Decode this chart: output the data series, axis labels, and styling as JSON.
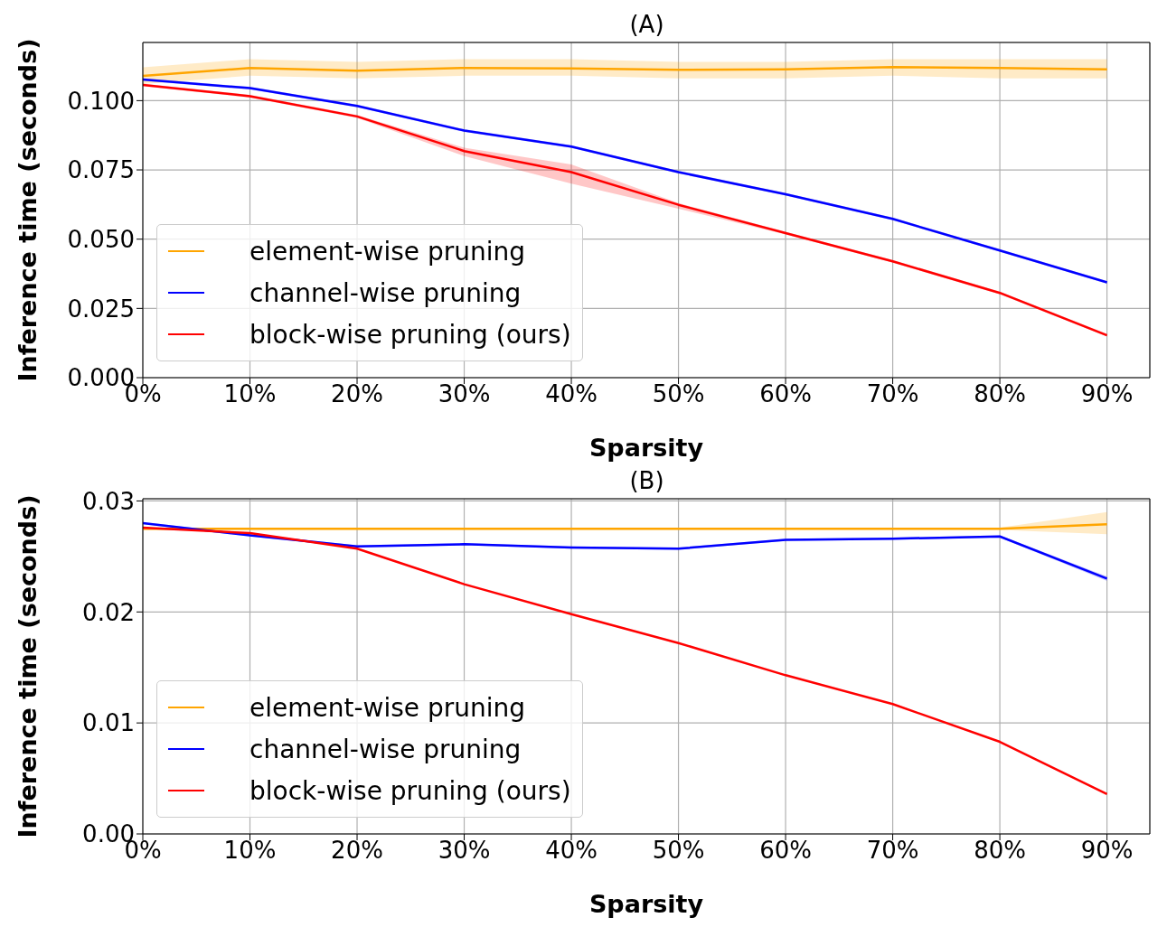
{
  "chart_data": [
    {
      "type": "line",
      "title": "(A)",
      "xlabel": "Sparsity",
      "ylabel": "Inference time (seconds)",
      "x": [
        0,
        10,
        20,
        30,
        40,
        50,
        60,
        70,
        80,
        90
      ],
      "xlim": [
        0,
        94
      ],
      "xticks": [
        {
          "value": 0,
          "label": "0%"
        },
        {
          "value": 10,
          "label": "10%"
        },
        {
          "value": 20,
          "label": "20%"
        },
        {
          "value": 30,
          "label": "30%"
        },
        {
          "value": 40,
          "label": "40%"
        },
        {
          "value": 50,
          "label": "50%"
        },
        {
          "value": 60,
          "label": "60%"
        },
        {
          "value": 70,
          "label": "70%"
        },
        {
          "value": 80,
          "label": "80%"
        },
        {
          "value": 90,
          "label": "90%"
        }
      ],
      "ylim": [
        0,
        0.121
      ],
      "yticks": [
        {
          "value": 0,
          "label": "0.000"
        },
        {
          "value": 0.025,
          "label": "0.025"
        },
        {
          "value": 0.05,
          "label": "0.050"
        },
        {
          "value": 0.075,
          "label": "0.075"
        },
        {
          "value": 0.1,
          "label": "0.100"
        }
      ],
      "grid": true,
      "legend": "bottom left",
      "series": [
        {
          "name": "element-wise pruning",
          "color": "#ffa500",
          "values": [
            0.1089,
            0.1118,
            0.1108,
            0.1118,
            0.1116,
            0.1111,
            0.1113,
            0.1121,
            0.1118,
            0.1113
          ],
          "lower": [
            0.106,
            0.109,
            0.108,
            0.109,
            0.109,
            0.108,
            0.108,
            0.109,
            0.108,
            0.108
          ],
          "upper": [
            0.112,
            0.115,
            0.114,
            0.115,
            0.115,
            0.114,
            0.114,
            0.115,
            0.115,
            0.115
          ]
        },
        {
          "name": "channel-wise pruning",
          "color": "#0000ff",
          "values": [
            0.1076,
            0.1045,
            0.0981,
            0.0892,
            0.0834,
            0.0742,
            0.0662,
            0.0573,
            0.0459,
            0.0344
          ],
          "lower": [
            0.1071,
            0.104,
            0.0976,
            0.0887,
            0.0829,
            0.0737,
            0.0657,
            0.0568,
            0.0454,
            0.0339
          ],
          "upper": [
            0.1081,
            0.105,
            0.0986,
            0.0897,
            0.0839,
            0.0747,
            0.0667,
            0.0578,
            0.0464,
            0.0349
          ]
        },
        {
          "name": "block-wise pruning (ours)",
          "color": "#ff0000",
          "values": [
            0.1057,
            0.1016,
            0.0943,
            0.0818,
            0.0742,
            0.0624,
            0.0522,
            0.042,
            0.0306,
            0.0153
          ],
          "lower": [
            0.1052,
            0.1011,
            0.0938,
            0.08,
            0.07,
            0.061,
            0.0517,
            0.0415,
            0.0301,
            0.0148
          ],
          "upper": [
            0.1062,
            0.1021,
            0.0948,
            0.083,
            0.077,
            0.063,
            0.0527,
            0.0425,
            0.0311,
            0.0158
          ]
        }
      ]
    },
    {
      "type": "line",
      "title": "(B)",
      "xlabel": "Sparsity",
      "ylabel": "Inference time (seconds)",
      "x": [
        0,
        10,
        20,
        30,
        40,
        50,
        60,
        70,
        80,
        90
      ],
      "xlim": [
        0,
        94
      ],
      "xticks": [
        {
          "value": 0,
          "label": "0%"
        },
        {
          "value": 10,
          "label": "10%"
        },
        {
          "value": 20,
          "label": "20%"
        },
        {
          "value": 30,
          "label": "30%"
        },
        {
          "value": 40,
          "label": "40%"
        },
        {
          "value": 50,
          "label": "50%"
        },
        {
          "value": 60,
          "label": "60%"
        },
        {
          "value": 70,
          "label": "70%"
        },
        {
          "value": 80,
          "label": "80%"
        },
        {
          "value": 90,
          "label": "90%"
        }
      ],
      "ylim": [
        0,
        0.0302
      ],
      "yticks": [
        {
          "value": 0,
          "label": "0.00"
        },
        {
          "value": 0.01,
          "label": "0.01"
        },
        {
          "value": 0.02,
          "label": "0.02"
        },
        {
          "value": 0.03,
          "label": "0.03"
        }
      ],
      "grid": true,
      "legend": "bottom left",
      "series": [
        {
          "name": "element-wise pruning",
          "color": "#ffa500",
          "values": [
            0.0275,
            0.0275,
            0.0275,
            0.0275,
            0.0275,
            0.0275,
            0.0275,
            0.0275,
            0.0275,
            0.0279
          ],
          "lower": [
            0.0274,
            0.0274,
            0.0274,
            0.0274,
            0.0274,
            0.0274,
            0.0274,
            0.0274,
            0.0274,
            0.027
          ],
          "upper": [
            0.0276,
            0.0276,
            0.0276,
            0.0276,
            0.0276,
            0.0276,
            0.0276,
            0.0276,
            0.0276,
            0.029
          ]
        },
        {
          "name": "channel-wise pruning",
          "color": "#0000ff",
          "values": [
            0.028,
            0.0269,
            0.0259,
            0.0261,
            0.0258,
            0.0257,
            0.0265,
            0.0266,
            0.0268,
            0.023
          ],
          "lower": [
            0.0279,
            0.0268,
            0.0258,
            0.026,
            0.0257,
            0.0256,
            0.0264,
            0.0265,
            0.0267,
            0.0228
          ],
          "upper": [
            0.0281,
            0.027,
            0.026,
            0.0262,
            0.0259,
            0.0258,
            0.0266,
            0.0267,
            0.0269,
            0.0232
          ]
        },
        {
          "name": "block-wise pruning (ours)",
          "color": "#ff0000",
          "values": [
            0.0276,
            0.0271,
            0.0257,
            0.0225,
            0.0198,
            0.0172,
            0.0143,
            0.0117,
            0.0083,
            0.0036
          ]
        }
      ]
    }
  ]
}
